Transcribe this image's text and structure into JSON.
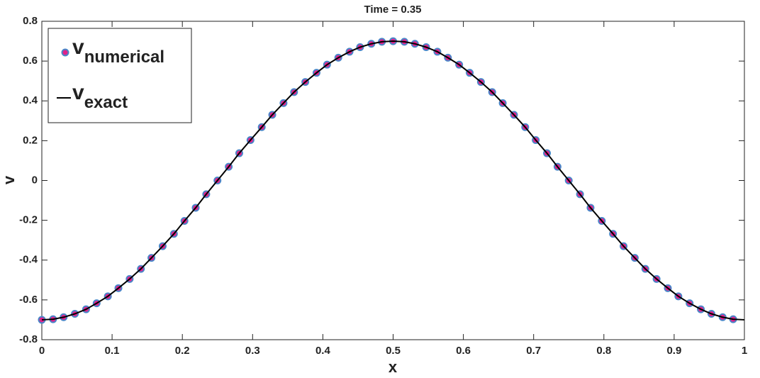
{
  "chart_data": {
    "type": "line",
    "title": "Time = 0.35",
    "x_label": "x",
    "y_label": "v",
    "x": [
      0,
      0.016,
      0.031,
      0.047,
      0.063,
      0.078,
      0.094,
      0.109,
      0.125,
      0.141,
      0.156,
      0.172,
      0.188,
      0.203,
      0.219,
      0.234,
      0.25,
      0.266,
      0.281,
      0.297,
      0.313,
      0.328,
      0.344,
      0.359,
      0.375,
      0.391,
      0.406,
      0.422,
      0.438,
      0.453,
      0.469,
      0.484,
      0.5,
      0.516,
      0.531,
      0.547,
      0.563,
      0.578,
      0.594,
      0.609,
      0.625,
      0.641,
      0.656,
      0.672,
      0.688,
      0.703,
      0.719,
      0.734,
      0.75,
      0.766,
      0.781,
      0.797,
      0.813,
      0.828,
      0.844,
      0.859,
      0.875,
      0.891,
      0.906,
      0.922,
      0.938,
      0.953,
      0.969,
      0.984,
      1
    ],
    "series": [
      {
        "name": "v",
        "subscript": "numerical",
        "marker": true,
        "color": "#e0218a",
        "edge_color": "#4a86c8",
        "values": [
          -0.7,
          -0.697,
          -0.687,
          -0.67,
          -0.647,
          -0.617,
          -0.582,
          -0.541,
          -0.495,
          -0.444,
          -0.389,
          -0.33,
          -0.268,
          -0.203,
          -0.137,
          -0.069,
          0,
          0.069,
          0.137,
          0.203,
          0.268,
          0.33,
          0.389,
          0.444,
          0.495,
          0.541,
          0.582,
          0.617,
          0.647,
          0.67,
          0.687,
          0.697,
          0.7,
          0.697,
          0.687,
          0.67,
          0.647,
          0.617,
          0.582,
          0.541,
          0.495,
          0.444,
          0.389,
          0.33,
          0.268,
          0.203,
          0.137,
          0.069,
          0,
          -0.069,
          -0.137,
          -0.203,
          -0.268,
          -0.33,
          -0.389,
          -0.444,
          -0.495,
          -0.541,
          -0.582,
          -0.617,
          -0.647,
          -0.67,
          -0.687,
          -0.697,
          null
        ]
      },
      {
        "name": "v",
        "subscript": "exact",
        "marker": false,
        "color": "#000000",
        "values": [
          -0.7,
          -0.697,
          -0.687,
          -0.67,
          -0.647,
          -0.617,
          -0.582,
          -0.541,
          -0.495,
          -0.444,
          -0.389,
          -0.33,
          -0.268,
          -0.203,
          -0.137,
          -0.069,
          0,
          0.069,
          0.137,
          0.203,
          0.268,
          0.33,
          0.389,
          0.444,
          0.495,
          0.541,
          0.582,
          0.617,
          0.647,
          0.67,
          0.687,
          0.697,
          0.7,
          0.697,
          0.687,
          0.67,
          0.647,
          0.617,
          0.582,
          0.541,
          0.495,
          0.444,
          0.389,
          0.33,
          0.268,
          0.203,
          0.137,
          0.069,
          0,
          -0.069,
          -0.137,
          -0.203,
          -0.268,
          -0.33,
          -0.389,
          -0.444,
          -0.495,
          -0.541,
          -0.582,
          -0.617,
          -0.647,
          -0.67,
          -0.687,
          -0.697,
          -0.7
        ]
      }
    ],
    "xlim": [
      0,
      1
    ],
    "xticks": [
      0,
      0.1,
      0.2,
      0.3,
      0.4,
      0.5,
      0.6,
      0.7,
      0.8,
      0.9,
      1
    ],
    "ylim": [
      -0.8,
      0.8
    ],
    "yticks": [
      -0.8,
      -0.6,
      -0.4,
      -0.2,
      0,
      0.2,
      0.4,
      0.6,
      0.8
    ],
    "legend": "upper-left",
    "grid": false
  }
}
